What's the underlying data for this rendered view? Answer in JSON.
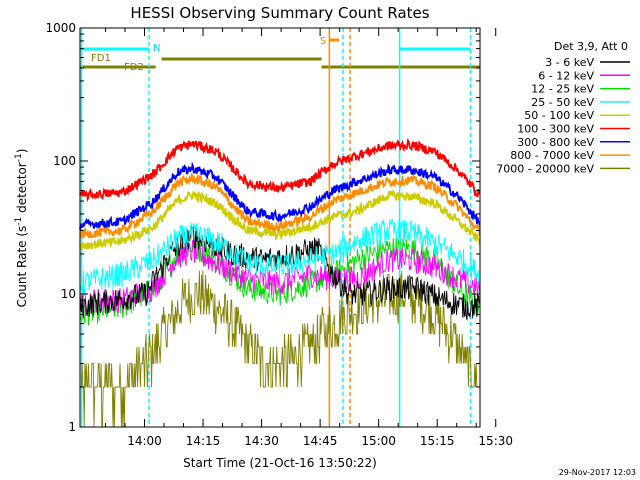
{
  "chart_data": {
    "type": "line",
    "title": "HESSI Observing Summary Count Rates",
    "xlabel": "Start Time (21-Oct-16 13:50:22)",
    "ylabel": "Count Rate (s-1 detector-1)",
    "ylabel_parts": {
      "base": "Count Rate (s",
      "exp1": "-1",
      "mid": " detector",
      "exp2": "-1",
      "end": ")"
    },
    "yscale": "log",
    "ylim": [
      1,
      1000
    ],
    "xlim_min": [
      -6.9,
      95.6
    ],
    "x_unit": "minutes after 13:50:22",
    "y_ticks": [
      {
        "value": 1,
        "label": "1"
      },
      {
        "value": 10,
        "label": "10"
      },
      {
        "value": 100,
        "label": "100"
      },
      {
        "value": 1000,
        "label": "1000"
      }
    ],
    "x_ticks": [
      {
        "value": 9.63,
        "label": "14:00"
      },
      {
        "value": 24.63,
        "label": "14:15"
      },
      {
        "value": 39.63,
        "label": "14:30"
      },
      {
        "value": 54.63,
        "label": "14:45"
      },
      {
        "value": 69.63,
        "label": "15:00"
      },
      {
        "value": 84.63,
        "label": "15:15"
      },
      {
        "value": 99.63,
        "label": "15:30"
      }
    ],
    "legend_header": "Det 3,9, Att 0",
    "legend_position": "right",
    "series": [
      {
        "name": "3 - 6 keV",
        "color": "#000000",
        "values_desc": "approximate",
        "points": [
          [
            -6.9,
            8
          ],
          [
            2,
            9
          ],
          [
            10,
            10
          ],
          [
            16,
            20
          ],
          [
            22,
            28
          ],
          [
            26,
            24
          ],
          [
            32,
            20
          ],
          [
            40,
            18
          ],
          [
            48,
            20
          ],
          [
            54,
            22
          ],
          [
            58,
            14
          ],
          [
            62,
            10
          ],
          [
            66,
            10
          ],
          [
            72,
            11
          ],
          [
            80,
            11
          ],
          [
            86,
            9
          ],
          [
            92,
            8
          ],
          [
            95.6,
            8
          ]
        ]
      },
      {
        "name": "6 - 12 keV",
        "color": "#ff00ff",
        "points": [
          [
            -6.9,
            9
          ],
          [
            4,
            9
          ],
          [
            12,
            11
          ],
          [
            18,
            19
          ],
          [
            22,
            21
          ],
          [
            28,
            17
          ],
          [
            36,
            13
          ],
          [
            44,
            12
          ],
          [
            52,
            14
          ],
          [
            58,
            13
          ],
          [
            64,
            13
          ],
          [
            72,
            18
          ],
          [
            78,
            18
          ],
          [
            84,
            16
          ],
          [
            90,
            13
          ],
          [
            95.6,
            11
          ]
        ]
      },
      {
        "name": "12 - 25 keV",
        "color": "#00dd00",
        "points": [
          [
            -6.9,
            7
          ],
          [
            4,
            8
          ],
          [
            12,
            11
          ],
          [
            18,
            20
          ],
          [
            22,
            23
          ],
          [
            28,
            18
          ],
          [
            36,
            11
          ],
          [
            44,
            10
          ],
          [
            52,
            12
          ],
          [
            58,
            14
          ],
          [
            64,
            18
          ],
          [
            72,
            22
          ],
          [
            78,
            22
          ],
          [
            84,
            18
          ],
          [
            90,
            11
          ],
          [
            95.6,
            8
          ]
        ]
      },
      {
        "name": "25 - 50 keV",
        "color": "#00ffff",
        "points": [
          [
            -6.9,
            12
          ],
          [
            4,
            14
          ],
          [
            12,
            18
          ],
          [
            18,
            26
          ],
          [
            22,
            28
          ],
          [
            28,
            25
          ],
          [
            36,
            17
          ],
          [
            44,
            16
          ],
          [
            52,
            18
          ],
          [
            58,
            20
          ],
          [
            64,
            25
          ],
          [
            72,
            30
          ],
          [
            78,
            29
          ],
          [
            84,
            24
          ],
          [
            90,
            19
          ],
          [
            95.6,
            14
          ]
        ]
      },
      {
        "name": "50 - 100 keV",
        "color": "#cccc00",
        "points": [
          [
            -6.9,
            23
          ],
          [
            4,
            25
          ],
          [
            12,
            32
          ],
          [
            18,
            50
          ],
          [
            22,
            56
          ],
          [
            28,
            48
          ],
          [
            36,
            30
          ],
          [
            44,
            28
          ],
          [
            52,
            32
          ],
          [
            58,
            38
          ],
          [
            64,
            42
          ],
          [
            72,
            55
          ],
          [
            78,
            54
          ],
          [
            84,
            48
          ],
          [
            90,
            35
          ],
          [
            95.6,
            25
          ]
        ]
      },
      {
        "name": "100 - 300 keV",
        "color": "#ff0000",
        "points": [
          [
            -6.9,
            55
          ],
          [
            4,
            58
          ],
          [
            12,
            80
          ],
          [
            18,
            125
          ],
          [
            22,
            135
          ],
          [
            28,
            118
          ],
          [
            36,
            68
          ],
          [
            44,
            62
          ],
          [
            52,
            70
          ],
          [
            58,
            95
          ],
          [
            64,
            110
          ],
          [
            72,
            130
          ],
          [
            78,
            132
          ],
          [
            84,
            118
          ],
          [
            90,
            85
          ],
          [
            95.6,
            55
          ]
        ]
      },
      {
        "name": "300 - 800 keV",
        "color": "#0000ff",
        "points": [
          [
            -6.9,
            33
          ],
          [
            4,
            35
          ],
          [
            12,
            50
          ],
          [
            18,
            82
          ],
          [
            22,
            88
          ],
          [
            28,
            76
          ],
          [
            36,
            42
          ],
          [
            44,
            38
          ],
          [
            52,
            45
          ],
          [
            58,
            60
          ],
          [
            64,
            70
          ],
          [
            72,
            85
          ],
          [
            78,
            86
          ],
          [
            84,
            76
          ],
          [
            90,
            54
          ],
          [
            95.6,
            34
          ]
        ]
      },
      {
        "name": "800 - 7000 keV",
        "color": "#ff8c00",
        "points": [
          [
            -6.9,
            28
          ],
          [
            4,
            30
          ],
          [
            12,
            42
          ],
          [
            18,
            68
          ],
          [
            22,
            74
          ],
          [
            28,
            64
          ],
          [
            36,
            35
          ],
          [
            44,
            32
          ],
          [
            52,
            38
          ],
          [
            58,
            50
          ],
          [
            64,
            58
          ],
          [
            72,
            70
          ],
          [
            78,
            72
          ],
          [
            84,
            64
          ],
          [
            90,
            45
          ],
          [
            95.6,
            29
          ]
        ]
      },
      {
        "name": "7000 - 20000 keV",
        "color": "#808000",
        "points": [
          [
            -6.9,
            2
          ],
          [
            4,
            2
          ],
          [
            10,
            3
          ],
          [
            16,
            6
          ],
          [
            20,
            9
          ],
          [
            24,
            10
          ],
          [
            28,
            8
          ],
          [
            34,
            5
          ],
          [
            40,
            3
          ],
          [
            46,
            3
          ],
          [
            52,
            4
          ],
          [
            58,
            6
          ],
          [
            64,
            8
          ],
          [
            70,
            9
          ],
          [
            76,
            10
          ],
          [
            82,
            8
          ],
          [
            88,
            5
          ],
          [
            92,
            3
          ],
          [
            95.6,
            2
          ]
        ]
      }
    ],
    "annotations": {
      "fd1_label": "FD1",
      "fd2_label": "FD2",
      "n_label": "N",
      "s_label": "S"
    },
    "timestamp": "29-Nov-2017 12:03"
  }
}
